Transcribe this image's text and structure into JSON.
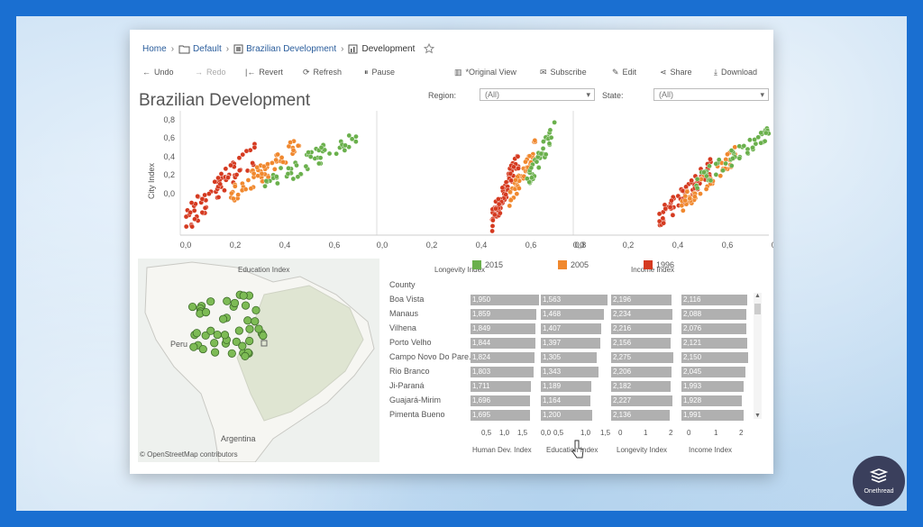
{
  "breadcrumb": {
    "home": "Home",
    "default": "Default",
    "workbook": "Brazilian Development",
    "view": "Development"
  },
  "toolbar": {
    "undo": "Undo",
    "redo": "Redo",
    "revert": "Revert",
    "refresh": "Refresh",
    "pause": "Pause",
    "original_view": "*Original View",
    "subscribe": "Subscribe",
    "edit": "Edit",
    "share": "Share",
    "download": "Download"
  },
  "dashboard": {
    "title": "Brazilian Development"
  },
  "filters": {
    "region_label": "Region:",
    "region_value": "(All)",
    "state_label": "State:",
    "state_value": "(All)"
  },
  "legend": [
    {
      "label": "2015",
      "color": "#6ab04c"
    },
    {
      "label": "2005",
      "color": "#f0882e"
    },
    {
      "label": "1996",
      "color": "#d53a20"
    }
  ],
  "map": {
    "labels": [
      "Peru",
      "Argentina"
    ],
    "attribution": "© OpenStreetMap contributors"
  },
  "table": {
    "header": "County",
    "rows": [
      {
        "county": "Boa Vista",
        "hdi": "1,950",
        "edu": "1,563",
        "lon": "2,196",
        "inc": "2,116"
      },
      {
        "county": "Manaus",
        "hdi": "1,859",
        "edu": "1,468",
        "lon": "2,234",
        "inc": "2,088"
      },
      {
        "county": "Vilhena",
        "hdi": "1,849",
        "edu": "1,407",
        "lon": "2,216",
        "inc": "2,076"
      },
      {
        "county": "Porto Velho",
        "hdi": "1,844",
        "edu": "1,397",
        "lon": "2,156",
        "inc": "2,121"
      },
      {
        "county": "Campo Novo Do Pare..",
        "hdi": "1,824",
        "edu": "1,305",
        "lon": "2,275",
        "inc": "2,150"
      },
      {
        "county": "Rio Branco",
        "hdi": "1,803",
        "edu": "1,343",
        "lon": "2,206",
        "inc": "2,045"
      },
      {
        "county": "Ji-Paraná",
        "hdi": "1,711",
        "edu": "1,189",
        "lon": "2,182",
        "inc": "1,993"
      },
      {
        "county": "Guajará-Mirim",
        "hdi": "1,696",
        "edu": "1,164",
        "lon": "2,227",
        "inc": "1,928"
      },
      {
        "county": "Pimenta Bueno",
        "hdi": "1,695",
        "edu": "1,200",
        "lon": "2,136",
        "inc": "1,991"
      }
    ],
    "columns": [
      "Human Dev. Index",
      "Education Index",
      "Longevity Index",
      "Income Index"
    ],
    "axes": [
      [
        "0,5",
        "1,0",
        "1,5"
      ],
      [
        "0,0",
        "0,5",
        "1,0",
        "1,5"
      ],
      [
        "0",
        "1",
        "2"
      ],
      [
        "0",
        "1",
        "2"
      ]
    ]
  },
  "scatter": {
    "ylabel": "City Index",
    "yticks": [
      "0,8",
      "0,6",
      "0,4",
      "0,2",
      "0,0"
    ],
    "panels": [
      {
        "xlabel": "Education Index",
        "xticks": [
          "0,0",
          "0,2",
          "0,4",
          "0,6"
        ]
      },
      {
        "xlabel": "Longevity Index",
        "xticks": [
          "0,0",
          "0,2",
          "0,4",
          "0,6",
          "0,8"
        ]
      },
      {
        "xlabel": "Income Index",
        "xticks": [
          "0,0",
          "0,2",
          "0,4",
          "0,6",
          "0,8"
        ]
      }
    ]
  },
  "brand": {
    "name": "Onethread"
  }
}
